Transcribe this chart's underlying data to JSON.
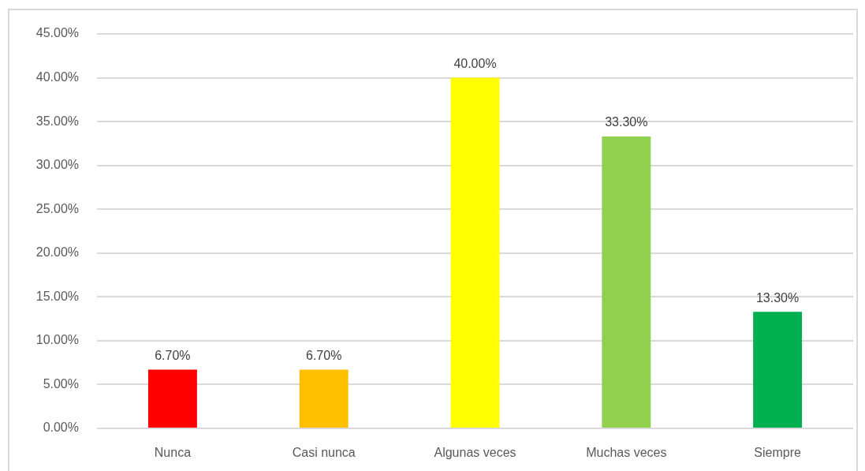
{
  "chart_data": {
    "type": "bar",
    "categories": [
      "Nunca",
      "Casi nunca",
      "Algunas veces",
      "Muchas veces",
      "Siempre"
    ],
    "values": [
      6.7,
      6.7,
      40,
      33.3,
      13.3
    ],
    "colors": [
      "#ff0000",
      "#ffc000",
      "#ffff00",
      "#92d050",
      "#00b050"
    ],
    "value_labels": [
      "6.70%",
      "6.70%",
      "40.00%",
      "33.30%",
      "13.30%"
    ],
    "ylim": [
      0,
      45
    ],
    "yticks": [
      {
        "value": 0,
        "label": "0.00%"
      },
      {
        "value": 5,
        "label": "5.00%"
      },
      {
        "value": 10,
        "label": "10.00%"
      },
      {
        "value": 15,
        "label": "15.00%"
      },
      {
        "value": 20,
        "label": "20.00%"
      },
      {
        "value": 25,
        "label": "25.00%"
      },
      {
        "value": 30,
        "label": "30.00%"
      },
      {
        "value": 35,
        "label": "35.00%"
      },
      {
        "value": 40,
        "label": "40.00%"
      },
      {
        "value": 45,
        "label": "45.00%"
      }
    ],
    "grid": "y"
  }
}
